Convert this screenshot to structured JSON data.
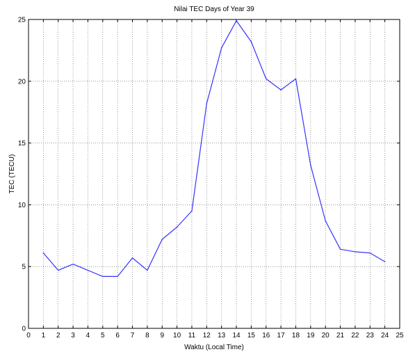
{
  "chart_data": {
    "type": "line",
    "title": "Nilai TEC Days of Year 39",
    "xlabel": "Waktu (Local Time)",
    "ylabel": "TEC (TECU)",
    "xlim": [
      0,
      25
    ],
    "ylim": [
      0,
      25
    ],
    "xticks": [
      "0",
      "1",
      "2",
      "3",
      "4",
      "5",
      "6",
      "7",
      "8",
      "9",
      "10",
      "11",
      "12",
      "13",
      "14",
      "15",
      "16",
      "17",
      "18",
      "19",
      "20",
      "21",
      "22",
      "23",
      "24",
      "25"
    ],
    "yticks": [
      "0",
      "5",
      "10",
      "15",
      "20",
      "25"
    ],
    "grid": true,
    "line_color": "#3333ff",
    "series": [
      {
        "x": [
          1,
          2,
          3,
          4,
          5,
          6,
          7,
          8,
          9,
          10,
          11,
          12,
          13,
          14,
          15,
          16,
          17,
          18,
          19,
          20,
          21,
          22,
          23,
          24
        ],
        "y": [
          6.1,
          4.7,
          5.2,
          4.7,
          4.2,
          4.2,
          5.7,
          4.7,
          7.2,
          8.2,
          9.5,
          18.2,
          22.7,
          24.9,
          23.2,
          20.2,
          19.3,
          20.2,
          13.2,
          8.7,
          6.4,
          6.2,
          6.1,
          5.4
        ]
      }
    ]
  }
}
